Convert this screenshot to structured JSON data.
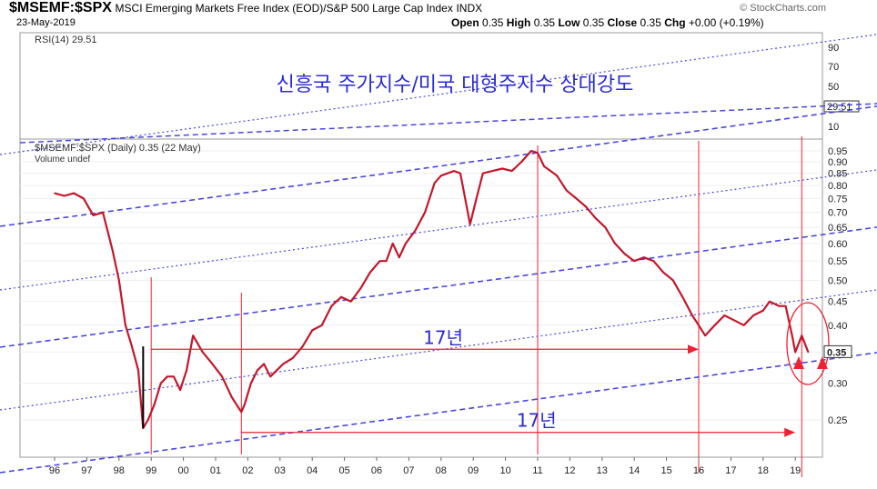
{
  "header": {
    "symbol": "$MSEMF:$SPX",
    "name": "MSCI Emerging Markets Free Index (EOD)/S&P 500 Large Cap Index",
    "exchange": "INDX",
    "date": "23-May-2019",
    "brand": "© StockCharts.com",
    "open_label": "Open",
    "open": "0.35",
    "high_label": "High",
    "high": "0.35",
    "low_label": "Low",
    "low": "0.35",
    "close_label": "Close",
    "close": "0.35",
    "chg_label": "Chg",
    "chg": "+0.00 (+0.19%)"
  },
  "rsi_panel": {
    "label": "RSI(14) 29.51",
    "ticks": [
      "90",
      "70",
      "50",
      "30",
      "10"
    ],
    "value_badge": "29.51"
  },
  "chart_data": {
    "type": "line",
    "title": "신흥국 주가지수/미국 대형주지수 상대강도",
    "legend": "$MSEMF:$SPX (Daily) 0.35 (22 May)",
    "volume_label": "Volume undef",
    "y_scale": "log",
    "ylim": [
      0.22,
      0.97
    ],
    "y_ticks": [
      0.95,
      0.9,
      0.85,
      0.8,
      0.75,
      0.7,
      0.65,
      0.6,
      0.55,
      0.5,
      0.45,
      0.4,
      0.35,
      0.3,
      0.25
    ],
    "y_tick_labels": [
      "0.95",
      "0.90",
      "0.85",
      "0.80",
      "0.75",
      "0.70",
      "0.65",
      "0.60",
      "0.55",
      "0.50",
      "0.45",
      "0.40",
      "0.35",
      "0.30",
      "0.25"
    ],
    "last_value_badge": "0.35",
    "x_labels": [
      "96",
      "97",
      "98",
      "99",
      "00",
      "01",
      "02",
      "03",
      "04",
      "05",
      "06",
      "07",
      "08",
      "09",
      "10",
      "11",
      "12",
      "13",
      "14",
      "15",
      "16",
      "17",
      "18",
      "19"
    ],
    "x_range": [
      1996,
      2019.42
    ],
    "series": [
      {
        "name": "$MSEMF:$SPX",
        "x": [
          1996.0,
          1996.3,
          1996.6,
          1996.9,
          1997.2,
          1997.5,
          1997.8,
          1998.0,
          1998.2,
          1998.4,
          1998.6,
          1998.75,
          1998.9,
          1999.1,
          1999.3,
          1999.5,
          1999.7,
          1999.9,
          2000.1,
          2000.3,
          2000.6,
          2000.9,
          2001.2,
          2001.5,
          2001.8,
          2001.9,
          2002.1,
          2002.3,
          2002.5,
          2002.7,
          2002.9,
          2003.1,
          2003.4,
          2003.7,
          2004.0,
          2004.3,
          2004.6,
          2004.9,
          2005.2,
          2005.5,
          2005.8,
          2006.1,
          2006.3,
          2006.5,
          2006.7,
          2006.9,
          2007.2,
          2007.5,
          2007.8,
          2008.0,
          2008.2,
          2008.4,
          2008.6,
          2008.75,
          2008.9,
          2009.1,
          2009.3,
          2009.6,
          2009.9,
          2010.2,
          2010.5,
          2010.8,
          2011.0,
          2011.2,
          2011.4,
          2011.6,
          2011.9,
          2012.2,
          2012.5,
          2012.8,
          2013.1,
          2013.4,
          2013.7,
          2014.0,
          2014.3,
          2014.6,
          2014.9,
          2015.2,
          2015.5,
          2015.8,
          2016.0,
          2016.2,
          2016.5,
          2016.8,
          2017.1,
          2017.4,
          2017.7,
          2018.0,
          2018.2,
          2018.5,
          2018.7,
          2018.9,
          2019.0,
          2019.2,
          2019.4
        ],
        "values": [
          0.77,
          0.76,
          0.77,
          0.75,
          0.69,
          0.7,
          0.58,
          0.5,
          0.4,
          0.36,
          0.32,
          0.24,
          0.25,
          0.27,
          0.3,
          0.31,
          0.31,
          0.29,
          0.32,
          0.38,
          0.35,
          0.33,
          0.31,
          0.28,
          0.26,
          0.27,
          0.3,
          0.32,
          0.33,
          0.31,
          0.32,
          0.33,
          0.34,
          0.36,
          0.39,
          0.4,
          0.44,
          0.46,
          0.45,
          0.48,
          0.52,
          0.55,
          0.55,
          0.6,
          0.56,
          0.6,
          0.64,
          0.7,
          0.81,
          0.84,
          0.85,
          0.86,
          0.85,
          0.75,
          0.66,
          0.75,
          0.85,
          0.86,
          0.87,
          0.86,
          0.9,
          0.95,
          0.94,
          0.88,
          0.86,
          0.84,
          0.78,
          0.75,
          0.72,
          0.68,
          0.65,
          0.6,
          0.57,
          0.55,
          0.56,
          0.55,
          0.52,
          0.5,
          0.46,
          0.42,
          0.4,
          0.38,
          0.4,
          0.42,
          0.41,
          0.4,
          0.42,
          0.43,
          0.45,
          0.44,
          0.44,
          0.38,
          0.35,
          0.38,
          0.35
        ]
      }
    ],
    "annotations": [
      {
        "text": "17년",
        "from": 1999.0,
        "to": 2016.0,
        "value": 0.355
      },
      {
        "text": "17년",
        "from": 2001.8,
        "to": 2019.0,
        "value": 0.235
      }
    ]
  }
}
